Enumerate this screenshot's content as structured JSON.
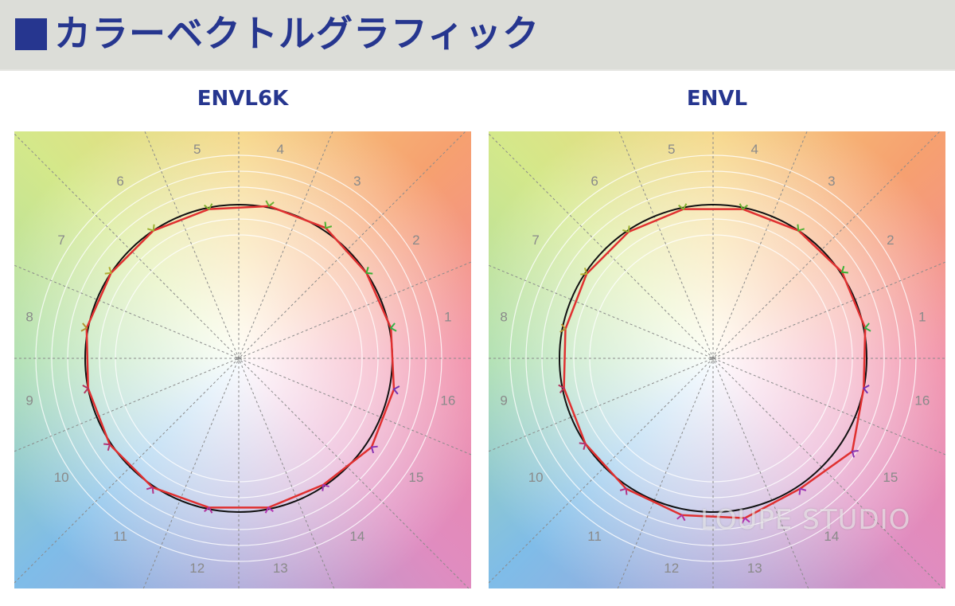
{
  "header": {
    "title": "カラーベクトルグラフィック",
    "accent": "#26368f"
  },
  "watermark": "LOUPE STUDIO",
  "chart_data": [
    {
      "type": "radar",
      "title": "ENVL6K",
      "axes": [
        "1",
        "2",
        "3",
        "4",
        "5",
        "6",
        "7",
        "8",
        "9",
        "10",
        "11",
        "12",
        "13",
        "14",
        "15",
        "16"
      ],
      "reference_circle": 1.0,
      "values": [
        1.01,
        1.0,
        1.02,
        1.01,
        0.99,
        1.0,
        1.0,
        1.01,
        1.0,
        1.01,
        1.01,
        0.99,
        0.99,
        0.99,
        1.04,
        1.03
      ],
      "grid": true,
      "colors": {
        "series": "#e03030",
        "reference": "#111111"
      }
    },
    {
      "type": "radar",
      "title": "ENVL",
      "axes": [
        "1",
        "2",
        "3",
        "4",
        "5",
        "6",
        "7",
        "8",
        "9",
        "10",
        "11",
        "12",
        "13",
        "14",
        "15",
        "16"
      ],
      "reference_circle": 1.0,
      "values": [
        1.01,
        1.01,
        1.0,
        0.99,
        0.99,
        0.99,
        0.99,
        0.98,
        0.99,
        1.0,
        1.02,
        1.04,
        1.06,
        1.02,
        1.09,
        1.0
      ],
      "grid": true,
      "colors": {
        "series": "#e03030",
        "reference": "#111111"
      }
    }
  ]
}
